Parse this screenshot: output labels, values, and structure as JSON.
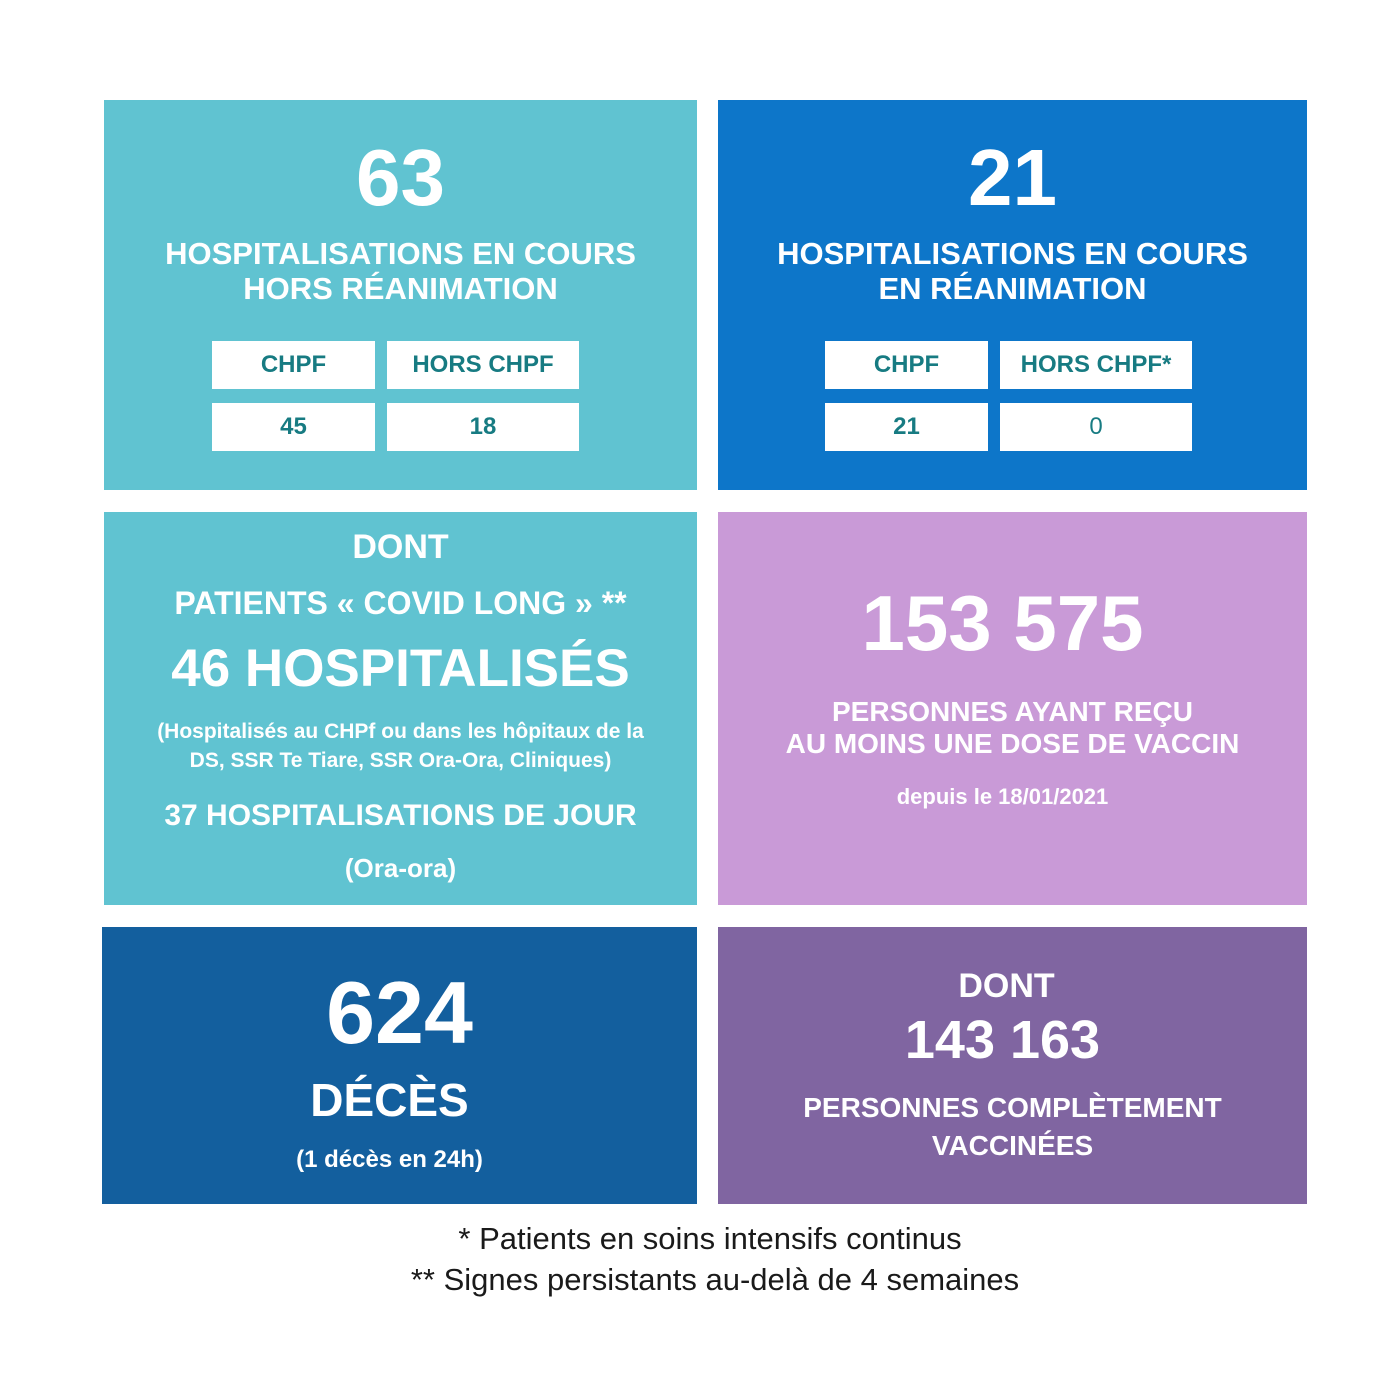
{
  "card_hors_rea": {
    "number": "63",
    "title_line1": "HOSPITALISATIONS EN COURS",
    "title_line2": "HORS RÉANIMATION",
    "table": {
      "col1_header": "CHPF",
      "col2_header": "HORS CHPF",
      "col1_value": "45",
      "col2_value": "18"
    }
  },
  "card_rea": {
    "number": "21",
    "title_line1": "HOSPITALISATIONS EN COURS",
    "title_line2": "EN RÉANIMATION",
    "table": {
      "col1_header": "CHPF",
      "col2_header": "HORS CHPF*",
      "col1_value": "21",
      "col2_value": "0"
    }
  },
  "card_covid_long": {
    "dont": "DONT",
    "patients": "PATIENTS « COVID LONG » **",
    "hospitalises": "46 HOSPITALISÉS",
    "note_line1": "(Hospitalisés au CHPf ou dans les hôpitaux de la",
    "note_line2": "DS, SSR Te Tiare, SSR Ora-Ora, Cliniques)",
    "jour": "37 HOSPITALISATIONS DE JOUR",
    "jour_note": "(Ora-ora)"
  },
  "card_vaccin": {
    "number": "153 575",
    "line1": "PERSONNES AYANT REÇU",
    "line2": "AU MOINS UNE DOSE DE VACCIN",
    "since": "depuis le 18/01/2021"
  },
  "card_deces": {
    "number": "624",
    "label": "DÉCÈS",
    "note": "(1 décès en 24h)"
  },
  "card_complet": {
    "dont": "DONT",
    "number": "143 163",
    "line1": "PERSONNES COMPLÈTEMENT",
    "line2": "VACCINÉES"
  },
  "footnotes": {
    "line1": "* Patients en soins intensifs continus",
    "line2": "** Signes persistants au-delà de 4 semaines"
  },
  "colors": {
    "teal": "#60c3d1",
    "blue": "#0d76c9",
    "lilac": "#c99ad7",
    "navy": "#135f9e",
    "purple": "#8065a1",
    "table_text": "#177b82"
  }
}
